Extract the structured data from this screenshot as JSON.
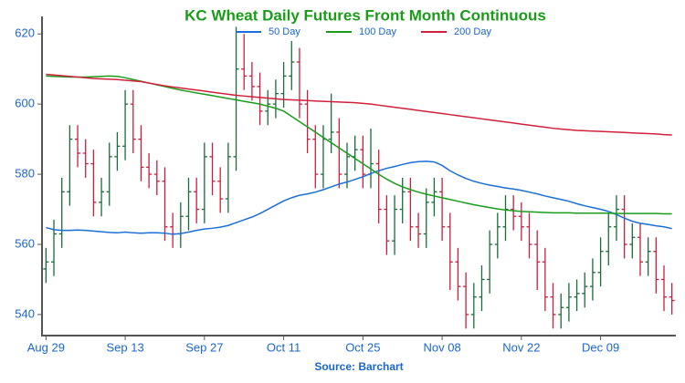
{
  "chart_data": {
    "type": "ohlc",
    "title": "KC Wheat Daily Futures Front Month Continuous",
    "source": "Source: Barchart",
    "categories": [
      "Aug 29",
      null,
      null,
      null,
      null,
      null,
      null,
      null,
      null,
      null,
      "Sep 13",
      null,
      null,
      null,
      null,
      null,
      null,
      null,
      null,
      null,
      "Sep 27",
      null,
      null,
      null,
      null,
      null,
      null,
      null,
      null,
      null,
      "Oct 11",
      null,
      null,
      null,
      null,
      null,
      null,
      null,
      null,
      null,
      "Oct 25",
      null,
      null,
      null,
      null,
      null,
      null,
      null,
      null,
      null,
      "Nov 08",
      null,
      null,
      null,
      null,
      null,
      null,
      null,
      null,
      null,
      "Nov 22",
      null,
      null,
      null,
      null,
      null,
      null,
      null,
      null,
      null,
      "Dec 09",
      null,
      null,
      null,
      null,
      null,
      null,
      null,
      null,
      null
    ],
    "up_color": "#1b6b3a",
    "down_color": "#c8203c",
    "open": [
      553,
      555,
      563,
      575,
      590,
      586,
      583,
      572,
      575,
      585,
      588,
      600,
      590,
      582,
      580,
      578,
      565,
      563,
      568,
      575,
      570,
      585,
      578,
      573,
      585,
      610,
      608,
      605,
      598,
      600,
      603,
      608,
      612,
      600,
      590,
      580,
      590,
      592,
      580,
      585,
      587,
      580,
      583,
      570,
      561,
      570,
      575,
      565,
      563,
      572,
      575,
      565,
      555,
      548,
      540,
      545,
      550,
      560,
      565,
      570,
      568,
      565,
      560,
      555,
      545,
      540,
      542,
      545,
      546,
      548,
      552,
      558,
      565,
      570,
      560,
      562,
      555,
      558,
      550,
      545
    ],
    "high": [
      559,
      567,
      579,
      594,
      594,
      590,
      587,
      579,
      589,
      592,
      604,
      604,
      594,
      586,
      584,
      582,
      569,
      572,
      579,
      579,
      589,
      589,
      582,
      589,
      622,
      620,
      612,
      609,
      604,
      607,
      612,
      618,
      616,
      604,
      594,
      594,
      603,
      596,
      589,
      591,
      591,
      593,
      587,
      574,
      574,
      579,
      579,
      569,
      576,
      579,
      579,
      569,
      559,
      552,
      549,
      554,
      564,
      569,
      574,
      574,
      572,
      569,
      564,
      559,
      549,
      546,
      549,
      550,
      552,
      556,
      562,
      569,
      574,
      574,
      566,
      566,
      562,
      562,
      554,
      549
    ],
    "low": [
      549,
      551,
      559,
      571,
      582,
      579,
      568,
      568,
      571,
      581,
      584,
      586,
      578,
      576,
      574,
      561,
      559,
      559,
      564,
      566,
      566,
      574,
      569,
      569,
      581,
      604,
      601,
      594,
      594,
      596,
      599,
      604,
      596,
      586,
      576,
      576,
      586,
      576,
      576,
      581,
      576,
      576,
      566,
      557,
      557,
      566,
      561,
      559,
      559,
      568,
      561,
      547,
      544,
      536,
      536,
      541,
      546,
      556,
      561,
      564,
      561,
      556,
      547,
      541,
      536,
      536,
      538,
      541,
      542,
      544,
      548,
      554,
      561,
      556,
      556,
      551,
      551,
      546,
      541,
      540
    ],
    "close": [
      555,
      563,
      575,
      590,
      586,
      583,
      572,
      575,
      585,
      588,
      600,
      590,
      582,
      580,
      578,
      565,
      563,
      568,
      575,
      570,
      585,
      578,
      573,
      585,
      610,
      608,
      605,
      598,
      600,
      603,
      608,
      612,
      600,
      590,
      580,
      590,
      592,
      580,
      585,
      587,
      580,
      583,
      570,
      561,
      570,
      575,
      565,
      563,
      572,
      575,
      565,
      555,
      548,
      540,
      545,
      550,
      560,
      565,
      570,
      568,
      565,
      560,
      555,
      545,
      540,
      542,
      545,
      546,
      548,
      552,
      558,
      565,
      570,
      560,
      562,
      555,
      558,
      550,
      545,
      544
    ],
    "lines": [
      {
        "name": "50 Day",
        "color": "#1a6fd6",
        "values": [
          564.8,
          564.2,
          564.0,
          564.0,
          564.1,
          564.0,
          563.8,
          563.6,
          563.4,
          563.3,
          563.5,
          563.3,
          563.2,
          563.3,
          563.3,
          563.2,
          562.9,
          563.1,
          563.5,
          564.0,
          564.4,
          564.6,
          564.9,
          565.4,
          566.2,
          567.0,
          567.8,
          568.8,
          570.0,
          571.2,
          572.4,
          573.3,
          574.0,
          574.4,
          574.9,
          575.6,
          576.4,
          577.2,
          577.8,
          578.5,
          579.3,
          580.2,
          581.0,
          581.7,
          582.2,
          582.8,
          583.3,
          583.6,
          583.7,
          583.5,
          582.5,
          581.0,
          579.8,
          578.8,
          578.0,
          577.4,
          576.9,
          576.5,
          576.1,
          575.8,
          575.4,
          574.9,
          574.4,
          573.8,
          573.3,
          572.8,
          572.3,
          571.6,
          571.0,
          570.5,
          570.0,
          569.4,
          568.5,
          567.5,
          566.6,
          566.0,
          565.7,
          565.3,
          565.0,
          564.5
        ]
      },
      {
        "name": "100 Day",
        "color": "#1a9c1a",
        "values": [
          608.0,
          607.9,
          607.8,
          607.7,
          607.7,
          607.7,
          607.8,
          607.9,
          608.0,
          607.9,
          607.5,
          607.0,
          606.5,
          606.0,
          605.5,
          605.0,
          604.5,
          604.0,
          603.6,
          603.2,
          602.8,
          602.4,
          602.0,
          601.6,
          601.2,
          600.8,
          600.4,
          600.0,
          599.4,
          598.8,
          598.0,
          596.5,
          595.0,
          593.5,
          592.0,
          590.5,
          589.0,
          587.5,
          586.0,
          584.5,
          583.0,
          581.5,
          580.0,
          578.6,
          577.4,
          576.4,
          575.6,
          574.9,
          574.3,
          573.8,
          573.3,
          572.8,
          572.3,
          571.8,
          571.3,
          570.9,
          570.5,
          570.1,
          569.8,
          569.6,
          569.4,
          569.3,
          569.2,
          569.1,
          569.0,
          569.0,
          569.0,
          568.9,
          568.9,
          568.9,
          568.9,
          568.9,
          568.8,
          568.8,
          568.8,
          568.8,
          568.8,
          568.8,
          568.7,
          568.7
        ]
      },
      {
        "name": "200 Day",
        "color": "#d0203a",
        "values": [
          608.5,
          608.3,
          608.1,
          607.9,
          607.7,
          607.5,
          607.3,
          607.2,
          607.1,
          607.0,
          606.8,
          606.6,
          606.4,
          606.0,
          605.6,
          605.2,
          604.9,
          604.6,
          604.3,
          604.0,
          603.7,
          603.4,
          603.1,
          602.8,
          602.5,
          602.3,
          602.1,
          601.9,
          601.7,
          601.5,
          601.3,
          601.2,
          601.1,
          601.0,
          600.9,
          600.8,
          600.7,
          600.6,
          600.5,
          600.4,
          600.2,
          600.0,
          599.7,
          599.4,
          599.1,
          598.8,
          598.5,
          598.2,
          597.9,
          597.6,
          597.3,
          597.0,
          596.7,
          596.4,
          596.1,
          595.8,
          595.5,
          595.2,
          594.9,
          594.6,
          594.3,
          594.0,
          593.7,
          593.4,
          593.1,
          592.9,
          592.7,
          592.5,
          592.4,
          592.3,
          592.2,
          592.1,
          592.0,
          591.9,
          591.8,
          591.7,
          591.6,
          591.5,
          591.3,
          591.2
        ]
      }
    ],
    "ylim": [
      534,
      625
    ],
    "yticks": [
      540,
      560,
      580,
      600,
      620
    ],
    "grid": false
  }
}
